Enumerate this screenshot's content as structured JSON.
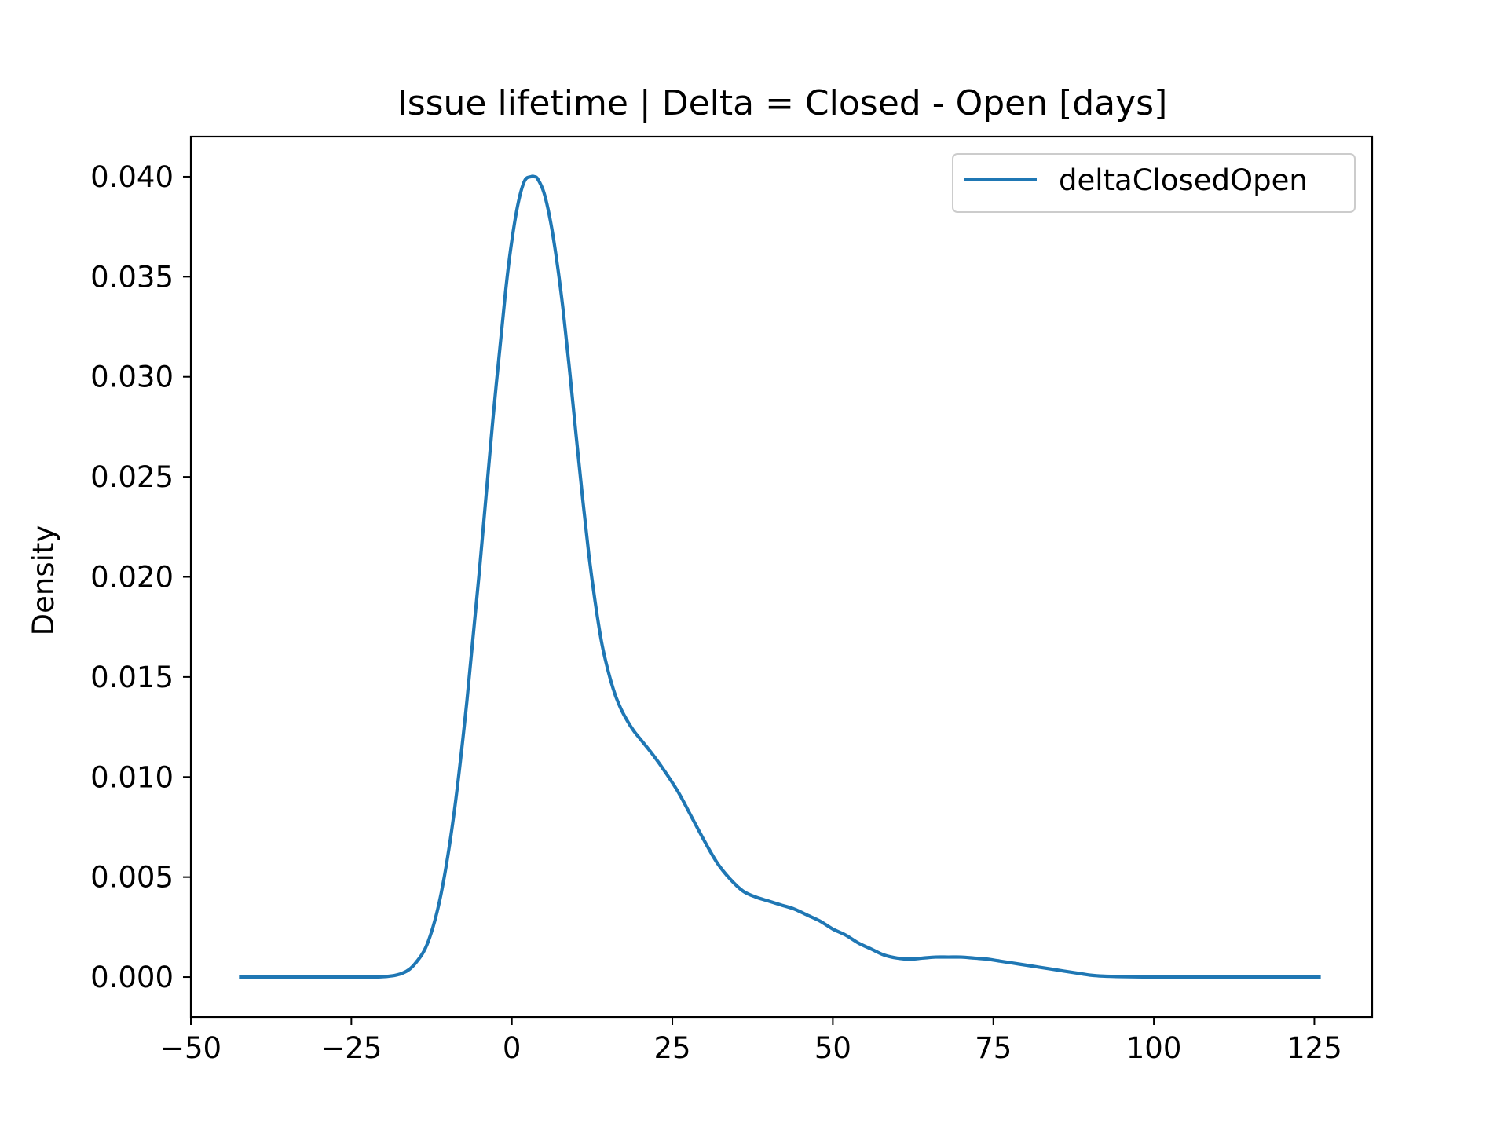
{
  "chart_data": {
    "type": "line",
    "title": "Issue lifetime | Delta = Closed - Open [days]",
    "xlabel": "",
    "ylabel": "Density",
    "xlim": [
      -50,
      134
    ],
    "ylim": [
      -0.002,
      0.042
    ],
    "x_ticks": [
      -50,
      -25,
      0,
      25,
      50,
      75,
      100,
      125
    ],
    "x_tick_labels": [
      "−50",
      "−25",
      "0",
      "25",
      "50",
      "75",
      "100",
      "125"
    ],
    "y_ticks": [
      0.0,
      0.005,
      0.01,
      0.015,
      0.02,
      0.025,
      0.03,
      0.035,
      0.04
    ],
    "y_tick_labels": [
      "0.000",
      "0.005",
      "0.010",
      "0.015",
      "0.020",
      "0.025",
      "0.030",
      "0.035",
      "0.040"
    ],
    "grid": false,
    "legend_position": "top-right",
    "series": [
      {
        "name": "deltaClosedOpen",
        "color": "#1f77b4",
        "x": [
          -42.5,
          -35,
          -25,
          -20,
          -17,
          -15,
          -13,
          -11,
          -9,
          -7,
          -5,
          -3,
          -1,
          0,
          1,
          2,
          3,
          3.5,
          4,
          5,
          6,
          7,
          8,
          9,
          10,
          11,
          12,
          13,
          14,
          15,
          16,
          17,
          18,
          19,
          20,
          22,
          24,
          26,
          28,
          30,
          32,
          34,
          36,
          38,
          40,
          42,
          44,
          46,
          48,
          50,
          52,
          54,
          56,
          58,
          60,
          62,
          64,
          66,
          68,
          70,
          72,
          74,
          76,
          78,
          80,
          82,
          84,
          86,
          88,
          90,
          92,
          95,
          100,
          105,
          110,
          115,
          120,
          126
        ],
        "values": [
          0.0,
          0.0,
          0.0,
          2e-05,
          0.0002,
          0.0007,
          0.0018,
          0.0042,
          0.0082,
          0.0138,
          0.0205,
          0.0277,
          0.0342,
          0.0368,
          0.0387,
          0.0398,
          0.04,
          0.04,
          0.0399,
          0.0392,
          0.0378,
          0.0358,
          0.0333,
          0.0303,
          0.0271,
          0.024,
          0.0211,
          0.0187,
          0.0167,
          0.0153,
          0.0142,
          0.0134,
          0.0128,
          0.0123,
          0.0119,
          0.0111,
          0.0102,
          0.0092,
          0.008,
          0.0068,
          0.0057,
          0.0049,
          0.0043,
          0.004,
          0.0038,
          0.0036,
          0.0034,
          0.0031,
          0.0028,
          0.0024,
          0.0021,
          0.0017,
          0.0014,
          0.0011,
          0.00095,
          0.0009,
          0.00095,
          0.001,
          0.001,
          0.001,
          0.00095,
          0.0009,
          0.0008,
          0.0007,
          0.0006,
          0.0005,
          0.0004,
          0.0003,
          0.0002,
          0.0001,
          5e-05,
          2e-05,
          0.0,
          0.0,
          0.0,
          0.0,
          0.0,
          0.0
        ]
      }
    ]
  }
}
